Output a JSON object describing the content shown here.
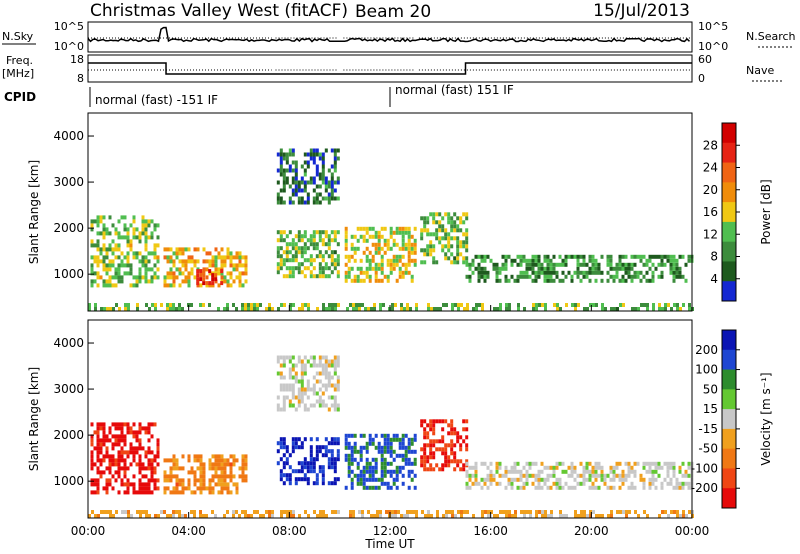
{
  "header": {
    "station": "Christmas Valley West (fitACF)",
    "beam": "Beam 20",
    "date": "15/Jul/2013"
  },
  "strips": {
    "nsky_label": "N.Sky",
    "nsky_ticks": [
      "10^5",
      "10^0"
    ],
    "nsearch_label": "N.Search",
    "nsearch_ticks": [
      "10^5",
      "10^0"
    ],
    "freq_label_1": "Freq.",
    "freq_label_2": "[MHz]",
    "freq_ticks": [
      "18",
      "8"
    ],
    "nave_label": "Nave",
    "nave_ticks": [
      "60",
      "0"
    ],
    "cpid_label": "CPID",
    "cpid_segments": [
      {
        "label": "normal (fast) -151 IF",
        "start_hour": 0
      },
      {
        "label": "normal (fast) 151 IF",
        "start_hour": 12
      }
    ]
  },
  "colors": {
    "power_scale": [
      "#1428d2",
      "#1e5a1e",
      "#3c8c3c",
      "#50be50",
      "#f0c814",
      "#f08c0a",
      "#f06414",
      "#e62314",
      "#d20000"
    ],
    "velocity_scale": [
      "#0a14b4",
      "#1e46d2",
      "#2d8c2d",
      "#64c832",
      "#c8c8c8",
      "#f0a01e",
      "#f07814",
      "#f04614",
      "#e60a0a"
    ]
  },
  "chart_data": [
    {
      "type": "heatmap",
      "name": "power",
      "xlabel": "",
      "ylabel": "Slant Range [km]",
      "xlim": [
        0,
        24
      ],
      "ylim": [
        200,
        4500
      ],
      "yticks": [
        "1000",
        "2000",
        "3000",
        "4000"
      ],
      "colorbar": {
        "label": "Power [dB]",
        "ticks": [
          "4",
          "8",
          "12",
          "16",
          "20",
          "24",
          "28"
        ],
        "range": [
          0,
          32
        ]
      },
      "data_gaps_hours": [
        [
          7.3,
          7.45
        ],
        [
          9.95,
          10.15
        ],
        [
          13.0,
          13.15
        ]
      ],
      "echo_regions": [
        {
          "t": [
            0.1,
            2.8
          ],
          "r": [
            800,
            2300
          ],
          "db": 13
        },
        {
          "t": [
            3.0,
            6.3
          ],
          "r": [
            800,
            1600
          ],
          "db": 18
        },
        {
          "t": [
            4.3,
            5.3
          ],
          "r": [
            850,
            1150
          ],
          "db": 27
        },
        {
          "t": [
            7.5,
            9.9
          ],
          "r": [
            1000,
            2000
          ],
          "db": 12
        },
        {
          "t": [
            7.5,
            10.2
          ],
          "r": [
            2600,
            3800
          ],
          "db": 6
        },
        {
          "t": [
            10.2,
            13.0
          ],
          "r": [
            900,
            2100
          ],
          "db": 16
        },
        {
          "t": [
            13.2,
            15.0
          ],
          "r": [
            1300,
            2400
          ],
          "db": 12
        },
        {
          "t": [
            15.0,
            24.0
          ],
          "r": [
            900,
            1500
          ],
          "db": 9
        },
        {
          "t": [
            0.0,
            24.0
          ],
          "r": [
            200,
            400
          ],
          "db": 12
        }
      ]
    },
    {
      "type": "heatmap",
      "name": "velocity",
      "xlabel": "Time UT",
      "ylabel": "Slant Range [km]",
      "xlim": [
        0,
        24
      ],
      "ylim": [
        200,
        4500
      ],
      "xticks": [
        "00:00",
        "04:00",
        "08:00",
        "12:00",
        "16:00",
        "20:00",
        "00:00"
      ],
      "yticks": [
        "1000",
        "2000",
        "3000",
        "4000"
      ],
      "colorbar": {
        "label": "Velocity [m s⁻¹]",
        "ticks": [
          "200",
          "100",
          "50",
          "15",
          "-15",
          "-50",
          "-100",
          "-200"
        ],
        "range": [
          -250,
          250
        ]
      },
      "data_gaps_hours": [
        [
          7.3,
          7.45
        ],
        [
          9.95,
          10.15
        ],
        [
          13.0,
          13.15
        ]
      ],
      "echo_regions": [
        {
          "t": [
            0.1,
            2.8
          ],
          "r": [
            800,
            2300
          ],
          "v": -220
        },
        {
          "t": [
            3.0,
            6.3
          ],
          "r": [
            800,
            1600
          ],
          "v": -100
        },
        {
          "t": [
            7.5,
            9.9
          ],
          "r": [
            1000,
            2000
          ],
          "v": 200
        },
        {
          "t": [
            7.5,
            10.2
          ],
          "r": [
            2600,
            3800
          ],
          "v": 0
        },
        {
          "t": [
            10.2,
            13.0
          ],
          "r": [
            900,
            2100
          ],
          "v": 150
        },
        {
          "t": [
            13.2,
            15.0
          ],
          "r": [
            1300,
            2400
          ],
          "v": -200
        },
        {
          "t": [
            15.0,
            24.0
          ],
          "r": [
            900,
            1500
          ],
          "v": 0
        },
        {
          "t": [
            0.0,
            24.0
          ],
          "r": [
            200,
            400
          ],
          "v": -50
        }
      ]
    }
  ]
}
